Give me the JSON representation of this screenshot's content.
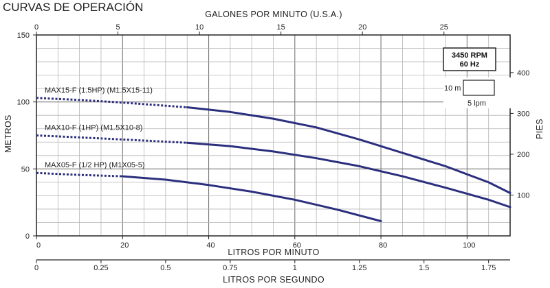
{
  "chart_data": {
    "type": "line",
    "title": "CURVAS DE OPERACIÓN",
    "x_bottom_label": "LITROS POR MINUTO",
    "x_bottom_ticks": [
      "0",
      "20",
      "40",
      "60",
      "80",
      "100"
    ],
    "x_bottom_range": [
      0,
      110
    ],
    "x_top_label": "GALONES POR MINUTO (U.S.A.)",
    "x_top_ticks": [
      "0",
      "5",
      "10",
      "15",
      "20",
      "25"
    ],
    "x_extra_label": "LITROS POR SEGUNDO",
    "x_extra_ticks": [
      "0",
      "0.25",
      "0.5",
      "0.75",
      "1",
      "1.25",
      "1.5",
      "1.75"
    ],
    "y_left_label": "METROS",
    "y_left_ticks": [
      "0",
      "50",
      "100",
      "150"
    ],
    "y_left_range": [
      0,
      150
    ],
    "y_right_label": "PIES",
    "y_right_ticks": [
      "100",
      "200",
      "300",
      "400"
    ],
    "speed_box": {
      "rpm": "3450 RPM",
      "hz": "60 Hz"
    },
    "grid_scale": {
      "vertical": "10 m",
      "horizontal": "5 lpm"
    },
    "grid": true,
    "series": [
      {
        "name": "MAX15-F (1.5HP) (M1.5X15-11)",
        "dashed_points": [
          [
            0,
            103
          ],
          [
            10,
            101.5
          ],
          [
            20,
            99.5
          ],
          [
            35,
            96
          ]
        ],
        "solid_points": [
          [
            35,
            96
          ],
          [
            45,
            92.5
          ],
          [
            55,
            87.5
          ],
          [
            65,
            81
          ],
          [
            75,
            72
          ],
          [
            85,
            62
          ],
          [
            95,
            52
          ],
          [
            105,
            40
          ],
          [
            110,
            32
          ]
        ]
      },
      {
        "name": "MAX10-F (1HP) (M1.5X10-8)",
        "dashed_points": [
          [
            0,
            75
          ],
          [
            10,
            73.5
          ],
          [
            20,
            72
          ],
          [
            35,
            69.5
          ]
        ],
        "solid_points": [
          [
            35,
            69.5
          ],
          [
            45,
            67
          ],
          [
            55,
            63
          ],
          [
            65,
            58
          ],
          [
            75,
            52
          ],
          [
            85,
            44.5
          ],
          [
            95,
            36
          ],
          [
            105,
            27
          ],
          [
            110,
            21.5
          ]
        ]
      },
      {
        "name": "MAX05-F (1/2 HP) (M1X05-5)",
        "dashed_points": [
          [
            0,
            47
          ],
          [
            10,
            45.5
          ],
          [
            20,
            44.5
          ]
        ],
        "solid_points": [
          [
            20,
            44.5
          ],
          [
            30,
            42
          ],
          [
            40,
            38
          ],
          [
            50,
            33
          ],
          [
            60,
            27
          ],
          [
            70,
            19.5
          ],
          [
            80,
            11
          ]
        ]
      }
    ]
  }
}
